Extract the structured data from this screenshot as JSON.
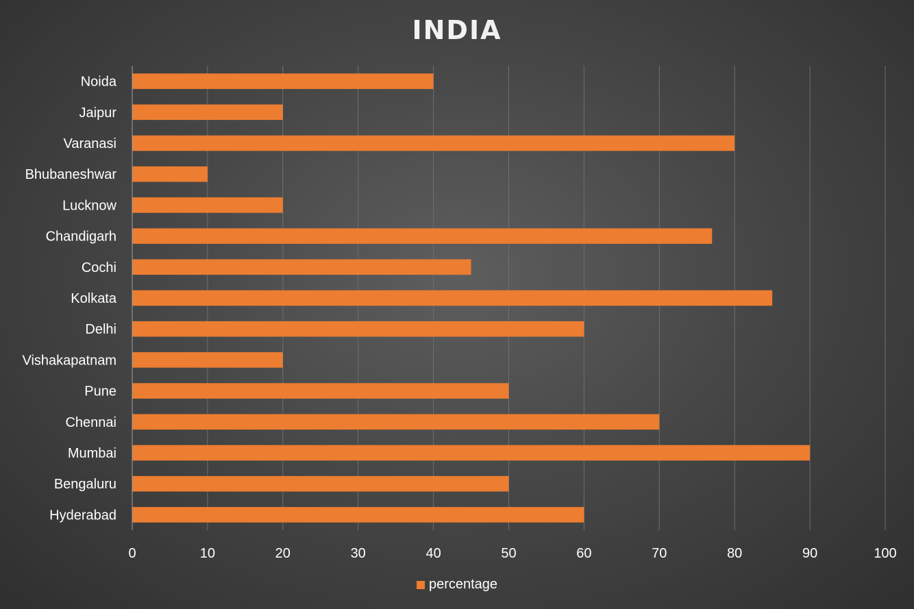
{
  "chart_data": {
    "type": "bar",
    "orientation": "horizontal",
    "title": "INDIA",
    "categories": [
      "Hyderabad",
      "Bengaluru",
      "Mumbai",
      "Chennai",
      "Pune",
      "Vishakapatnam",
      "Delhi",
      "Kolkata",
      "Cochi",
      "Chandigarh",
      "Lucknow",
      "Bhubaneshwar",
      "Varanasi",
      "Jaipur",
      "Noida"
    ],
    "series": [
      {
        "name": "percentage",
        "values": [
          60,
          50,
          90,
          70,
          50,
          20,
          60,
          85,
          45,
          77,
          20,
          10,
          80,
          20,
          40
        ],
        "color": "#ED7D31"
      }
    ],
    "xlim": [
      0,
      100
    ],
    "x_ticks": [
      "0",
      "10",
      "20",
      "30",
      "40",
      "50",
      "60",
      "70",
      "80",
      "90",
      "100"
    ],
    "grid": true,
    "legend_position": "bottom"
  }
}
